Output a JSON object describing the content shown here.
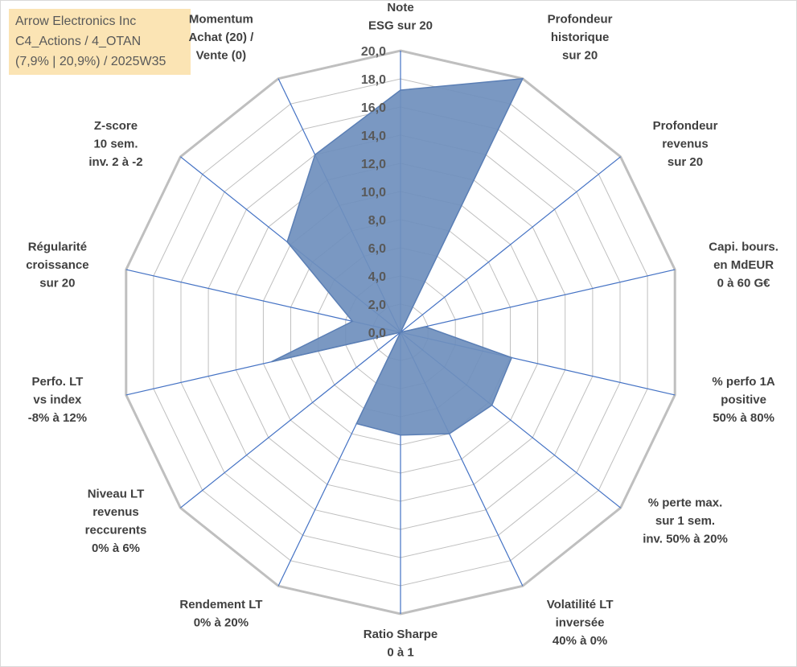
{
  "info_box": {
    "lines": [
      "Arrow Electronics Inc",
      "C4_Actions / 4_OTAN",
      "(7,9% | 20,9%) / 2025W35"
    ]
  },
  "colors": {
    "grid": "#bfbfbf",
    "spoke": "#4472c4",
    "fill": "#6f8fbd",
    "stroke": "#5b7fb5",
    "label": "#404040",
    "info_bg": "#fbe4b4"
  },
  "chart_data": {
    "type": "radar",
    "title": "",
    "r_range": [
      0,
      20
    ],
    "r_tick_step": 2,
    "tick_labels": [
      "0,0",
      "2,0",
      "4,0",
      "6,0",
      "8,0",
      "10,0",
      "12,0",
      "14,0",
      "16,0",
      "18,0",
      "20,0"
    ],
    "grid": true,
    "categories": [
      [
        "Note",
        "ESG sur 20"
      ],
      [
        "Profondeur",
        "historique",
        "sur 20"
      ],
      [
        "Profondeur",
        "revenus",
        "sur 20"
      ],
      [
        "Capi. bours.",
        "en MdEUR",
        "0 à 60 G€"
      ],
      [
        "% perfo 1A",
        "positive",
        "50% à 80%"
      ],
      [
        "% perte max.",
        "sur 1 sem.",
        "inv. 50% à 20%"
      ],
      [
        "Volatilité LT",
        "inversée",
        "40% à 0%"
      ],
      [
        "Ratio Sharpe",
        "0 à 1"
      ],
      [
        "Rendement LT",
        "0% à 20%"
      ],
      [
        "Niveau LT",
        "revenus",
        "reccurents",
        "0% à 6%"
      ],
      [
        "Perfo. LT",
        "vs index",
        "-8% à 12%"
      ],
      [
        "Régularité",
        "croissance",
        "sur 20"
      ],
      [
        "Z-score",
        "10 sem.",
        "inv. 2 à -2"
      ],
      [
        "Momentum",
        "Achat (20) /",
        "Vente (0)"
      ]
    ],
    "series": [
      {
        "values": [
          17.2,
          20.0,
          0.0,
          1.8,
          8.1,
          8.3,
          8.0,
          7.3,
          7.2,
          0.0,
          9.4,
          3.5,
          10.3,
          14.0
        ]
      }
    ]
  }
}
